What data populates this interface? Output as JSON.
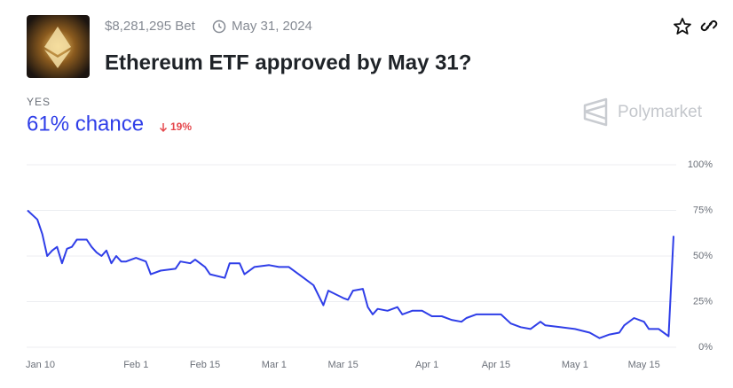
{
  "market": {
    "volume": "$8,281,295 Bet",
    "end_date": "May 31, 2024",
    "title": "Ethereum ETF approved by May 31?",
    "outcome": "YES",
    "chance": "61% chance",
    "change": "19%",
    "brand": "Polymarket"
  },
  "chart_data": {
    "type": "line",
    "x": [
      "Jan 10",
      "Jan 12",
      "Jan 13",
      "Jan 14",
      "Jan 15",
      "Jan 16",
      "Jan 17",
      "Jan 18",
      "Jan 19",
      "Jan 20",
      "Jan 22",
      "Jan 23",
      "Jan 24",
      "Jan 25",
      "Jan 26",
      "Jan 27",
      "Jan 28",
      "Jan 29",
      "Jan 30",
      "Jan 31",
      "Feb 1",
      "Feb 3",
      "Feb 4",
      "Feb 6",
      "Feb 9",
      "Feb 10",
      "Feb 12",
      "Feb 13",
      "Feb 15",
      "Feb 16",
      "Feb 19",
      "Feb 20",
      "Feb 22",
      "Feb 23",
      "Feb 25",
      "Feb 28",
      "Mar 2",
      "Mar 4",
      "Mar 7",
      "Mar 9",
      "Mar 11",
      "Mar 12",
      "Mar 15",
      "Mar 16",
      "Mar 17",
      "Mar 19",
      "Mar 20",
      "Mar 21",
      "Mar 22",
      "Mar 24",
      "Mar 26",
      "Mar 27",
      "Mar 29",
      "Mar 31",
      "Apr 2",
      "Apr 4",
      "Apr 6",
      "Apr 8",
      "Apr 9",
      "Apr 11",
      "Apr 14",
      "Apr 16",
      "Apr 18",
      "Apr 20",
      "Apr 22",
      "Apr 24",
      "Apr 25",
      "Apr 28",
      "May 1",
      "May 4",
      "May 6",
      "May 8",
      "May 10",
      "May 11",
      "May 13",
      "May 15",
      "May 16",
      "May 18",
      "May 20",
      "May 21"
    ],
    "series": [
      {
        "name": "YES",
        "color": "#2f3ee8",
        "values": [
          75,
          70,
          62,
          50,
          53,
          55,
          46,
          54,
          55,
          59,
          59,
          55,
          52,
          50,
          53,
          46,
          50,
          47,
          47,
          48,
          49,
          47,
          40,
          42,
          43,
          47,
          46,
          48,
          44,
          40,
          38,
          46,
          46,
          40,
          44,
          45,
          44,
          44,
          38,
          34,
          23,
          31,
          27,
          26,
          31,
          32,
          22,
          18,
          21,
          20,
          22,
          18,
          20,
          20,
          17,
          17,
          15,
          14,
          16,
          18,
          18,
          18,
          13,
          11,
          10,
          14,
          12,
          11,
          10,
          8,
          5,
          7,
          8,
          12,
          16,
          14,
          10,
          10,
          6,
          61
        ]
      }
    ],
    "xticks": [
      "Jan 10",
      "Feb 1",
      "Feb 15",
      "Mar 1",
      "Mar 15",
      "Apr 1",
      "Apr 15",
      "May 1",
      "May 15"
    ],
    "ylim": [
      0,
      100
    ],
    "yticks": [
      {
        "value": 0,
        "label": "0%"
      },
      {
        "value": 25,
        "label": "25%"
      },
      {
        "value": 50,
        "label": "50%"
      },
      {
        "value": 75,
        "label": "75%"
      },
      {
        "value": 100,
        "label": "100%"
      }
    ],
    "grid": true
  }
}
